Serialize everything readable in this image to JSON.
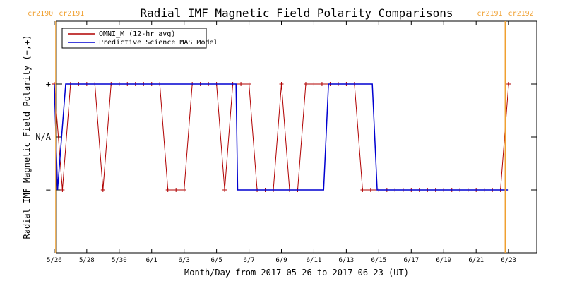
{
  "chart_data": {
    "type": "line",
    "title": "Radial IMF Magnetic Field Polarity Comparisons",
    "xlabel": "Month/Day from 2017-05-26 to 2017-06-23 (UT)",
    "ylabel": "Radial IMF Magnetic Field Polarity (−,+)",
    "x_range_days": [
      0,
      28
    ],
    "ylim": [
      -1.5,
      1.5
    ],
    "x_ticks": [
      {
        "day": 0,
        "label": "5/26"
      },
      {
        "day": 2,
        "label": "5/28"
      },
      {
        "day": 4,
        "label": "5/30"
      },
      {
        "day": 6,
        "label": "6/1"
      },
      {
        "day": 8,
        "label": "6/3"
      },
      {
        "day": 10,
        "label": "6/5"
      },
      {
        "day": 12,
        "label": "6/7"
      },
      {
        "day": 14,
        "label": "6/9"
      },
      {
        "day": 16,
        "label": "6/11"
      },
      {
        "day": 18,
        "label": "6/13"
      },
      {
        "day": 20,
        "label": "6/15"
      },
      {
        "day": 22,
        "label": "6/17"
      },
      {
        "day": 24,
        "label": "6/19"
      },
      {
        "day": 26,
        "label": "6/21"
      },
      {
        "day": 28,
        "label": "6/23"
      }
    ],
    "y_ticks": [
      {
        "value": 1,
        "label": "+"
      },
      {
        "value": 0,
        "label": "N/A"
      },
      {
        "value": -1,
        "label": "−"
      }
    ],
    "colors": {
      "omni": "#b00000",
      "model": "#0000d0",
      "cr": "#f0a030"
    },
    "series": [
      {
        "name": "OMNI_M (12-hr avg)",
        "x": [
          1.0,
          1.5,
          2.0,
          2.5,
          3.0,
          3.5,
          4.0,
          4.5,
          5.0,
          5.5,
          6.0,
          6.5,
          7.0,
          7.5,
          8.0,
          8.5,
          9.0,
          9.5,
          10.0,
          10.5,
          11.0,
          11.5,
          12.0,
          12.5,
          13.0,
          13.5,
          14.0,
          14.5,
          15.0,
          15.5,
          16.0,
          16.5,
          17.0,
          17.5,
          18.0,
          18.5,
          19.0,
          19.5,
          20.0,
          20.5,
          21.0,
          21.5,
          22.0,
          22.5,
          23.0,
          23.5,
          24.0,
          24.5,
          25.0,
          25.5,
          26.0,
          26.5,
          27.0,
          27.5,
          28.0,
          28.5,
          29.0
        ],
        "y": [
          1,
          -1,
          1,
          1,
          1,
          1,
          -1,
          1,
          1,
          1,
          1,
          1,
          1,
          1,
          -1,
          -1,
          -1,
          1,
          1,
          1,
          1,
          -1,
          1,
          1,
          1,
          -1,
          -1,
          -1,
          1,
          -1,
          -1,
          1,
          1,
          1,
          1,
          1,
          1,
          1,
          -1,
          -1,
          -1,
          -1,
          -1,
          -1,
          -1,
          -1,
          -1,
          -1,
          -1,
          -1,
          -1,
          -1,
          -1,
          -1,
          -1,
          -1,
          1
        ]
      },
      {
        "name": "Predictive Science MAS Model",
        "x": [
          1.0,
          1.2,
          1.7,
          12.2,
          12.3,
          17.6,
          17.9,
          20.6,
          20.9,
          29.0
        ],
        "y": [
          1,
          -1,
          1,
          1,
          -1,
          -1,
          1,
          1,
          -1,
          -1
        ]
      }
    ],
    "vertical_markers": [
      {
        "day": 1.1,
        "label_left": "cr2190",
        "label_right": "cr2191"
      },
      {
        "day": 28.8,
        "label_left": "cr2191",
        "label_right": "cr2192"
      }
    ]
  }
}
